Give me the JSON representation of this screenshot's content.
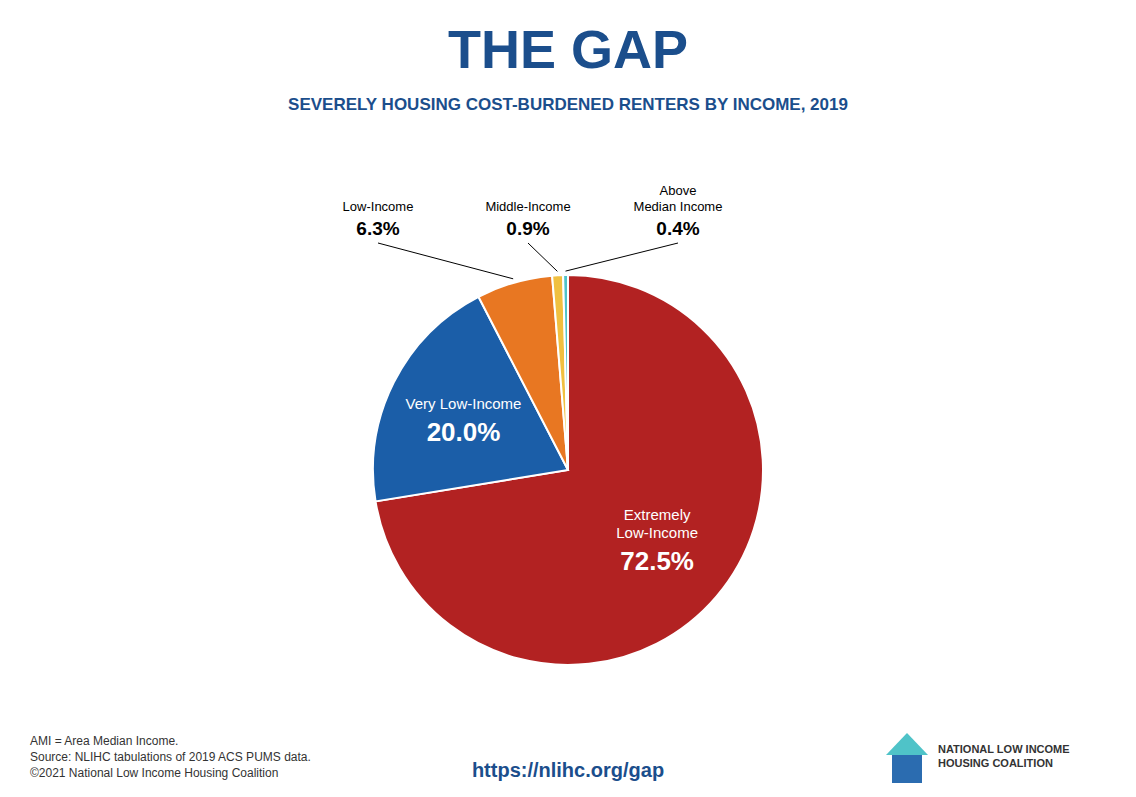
{
  "chart_data": {
    "type": "pie",
    "title": "THE GAP",
    "subtitle": "SEVERELY HOUSING COST-BURDENED RENTERS BY INCOME, 2019",
    "categories": [
      "Extremely\nLow-Income",
      "Very Low-Income",
      "Low-Income",
      "Middle-Income",
      "Above\nMedian Income"
    ],
    "values": [
      72.5,
      20.0,
      6.3,
      0.9,
      0.4
    ],
    "value_labels": [
      "72.5%",
      "20.0%",
      "6.3%",
      "0.9%",
      "0.4%"
    ],
    "colors": [
      "#B22222",
      "#1B5EA8",
      "#E87722",
      "#F0C040",
      "#4FC3C8"
    ],
    "data_labels": true,
    "annotations": [
      "AMI = Area Median Income.",
      "Source: NLIHC tabulations of 2019 ACS PUMS data.",
      "©2021 National Low Income Housing Coalition",
      "https://nlihc.org/gap",
      "NATIONAL LOW INCOME\nHOUSING COALITION"
    ]
  }
}
